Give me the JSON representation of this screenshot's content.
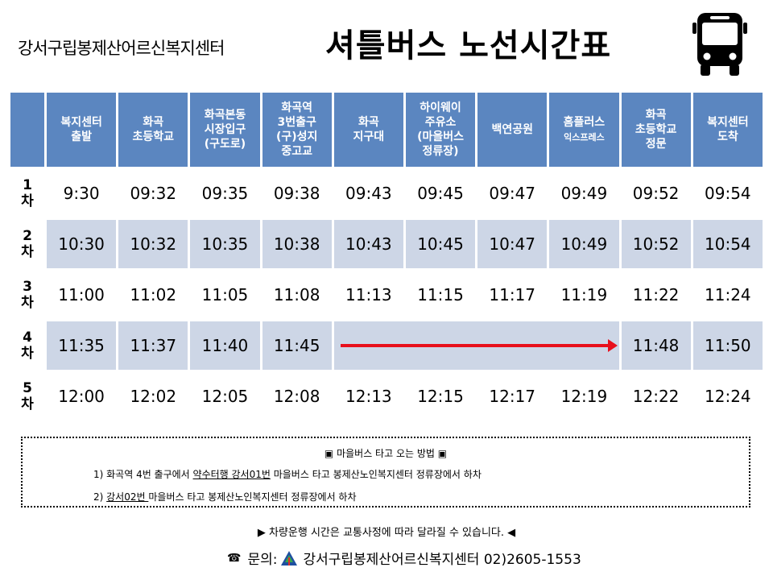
{
  "header": {
    "org_name": "강서구립봉제산어르신복지센터",
    "title": "셔틀버스 노선시간표"
  },
  "timetable": {
    "stops": [
      {
        "line1": "복지센터\n출발",
        "small": ""
      },
      {
        "line1": "화곡\n초등학교",
        "small": ""
      },
      {
        "line1": "화곡본동\n시장입구\n(구도로)",
        "small": ""
      },
      {
        "line1": "화곡역\n3번출구\n(구)성지\n중고교",
        "small": ""
      },
      {
        "line1": "화곡\n지구대",
        "small": ""
      },
      {
        "line1": "하이웨이\n주유소\n(마을버스\n정류장)",
        "small": ""
      },
      {
        "line1": "백연공원",
        "small": ""
      },
      {
        "line1": "홈플러스",
        "small": "익스프레스"
      },
      {
        "line1": "화곡\n초등학교\n정문",
        "small": ""
      },
      {
        "line1": "복지센터\n도착",
        "small": ""
      }
    ],
    "rows": [
      {
        "label": "1\n차",
        "times": [
          "9:30",
          "09:32",
          "09:35",
          "09:38",
          "09:43",
          "09:45",
          "09:47",
          "09:49",
          "09:52",
          "09:54"
        ]
      },
      {
        "label": "2\n차",
        "times": [
          "10:30",
          "10:32",
          "10:35",
          "10:38",
          "10:43",
          "10:45",
          "10:47",
          "10:49",
          "10:52",
          "10:54"
        ]
      },
      {
        "label": "3\n차",
        "times": [
          "11:00",
          "11:02",
          "11:05",
          "11:08",
          "11:13",
          "11:15",
          "11:17",
          "11:19",
          "11:22",
          "11:24"
        ]
      },
      {
        "label": "4\n차",
        "times": [
          "11:35",
          "11:37",
          "11:40",
          "11:45",
          "",
          "",
          "",
          "",
          "11:48",
          "11:50"
        ]
      },
      {
        "label": "5\n차",
        "times": [
          "12:00",
          "12:02",
          "12:05",
          "12:08",
          "12:13",
          "12:15",
          "12:17",
          "12:19",
          "12:22",
          "12:24"
        ]
      }
    ]
  },
  "guide": {
    "title": "▣ 마을버스 타고 오는 방법 ▣",
    "item1_pre": "1)  화곡역 4번 출구에서 ",
    "item1_u": "약수터행 강서01번",
    "item1_post": " 마을버스 타고 봉제산노인복지센터 정류장에서 하차",
    "item2_pre": "2)  ",
    "item2_u": "강서02번 ",
    "item2_post": "마을버스 타고 봉제산노인복지센터 정류장에서 하차"
  },
  "footer": {
    "notice": "▶  차량운행 시간은 교통사정에 따라 달라질 수 있습니다. ◀",
    "phone_symbol": "☎",
    "contact_label": "문의: ",
    "contact_text": "강서구립봉제산어르신복지센터 02)2605-1553"
  },
  "colors": {
    "header_fill": "#5b86c0",
    "alt_row_fill": "#cdd6e6",
    "arrow": "#e8101c"
  },
  "icons": {
    "bus": "bus-icon",
    "phone": "phone-icon",
    "logo": "center-logo-icon"
  }
}
